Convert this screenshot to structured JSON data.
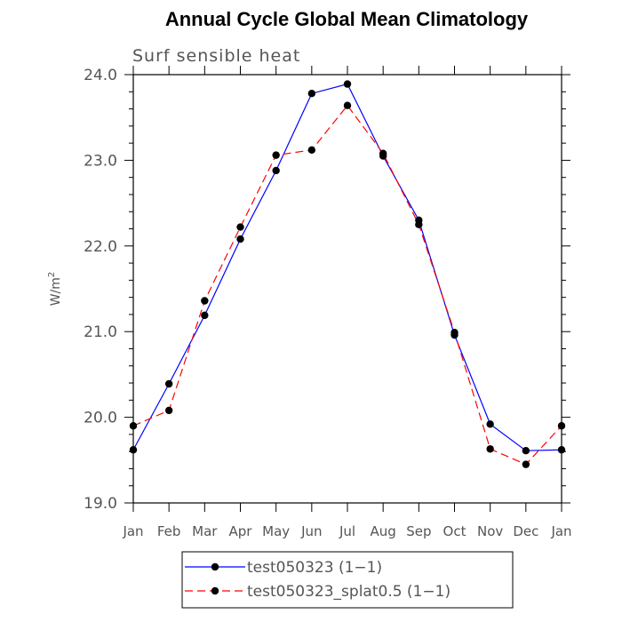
{
  "chart_data": {
    "type": "line",
    "title": "Annual Cycle Global Mean Climatology",
    "subtitle": "Surf sensible heat",
    "ylabel_base": "W/m",
    "ylabel_sup": "2",
    "categories": [
      "Jan",
      "Feb",
      "Mar",
      "Apr",
      "May",
      "Jun",
      "Jul",
      "Aug",
      "Sep",
      "Oct",
      "Nov",
      "Dec",
      "Jan"
    ],
    "ylim": [
      19.0,
      24.0
    ],
    "yticks": [
      "19.0",
      "20.0",
      "21.0",
      "22.0",
      "23.0",
      "24.0"
    ],
    "series": [
      {
        "name": "test050323 (1−1)",
        "color": "#0000ff",
        "dash": "solid",
        "values": [
          19.62,
          20.39,
          21.19,
          22.08,
          22.88,
          23.78,
          23.89,
          23.05,
          22.3,
          20.96,
          19.92,
          19.61,
          19.62
        ]
      },
      {
        "name": "test050323_splat0.5 (1−1)",
        "color": "#ff0000",
        "dash": "dashed",
        "values": [
          19.9,
          20.08,
          21.36,
          22.22,
          23.06,
          23.12,
          23.64,
          23.08,
          22.25,
          20.99,
          19.63,
          19.45,
          19.9
        ]
      }
    ],
    "grid": false,
    "legend_position": "bottom-center"
  }
}
